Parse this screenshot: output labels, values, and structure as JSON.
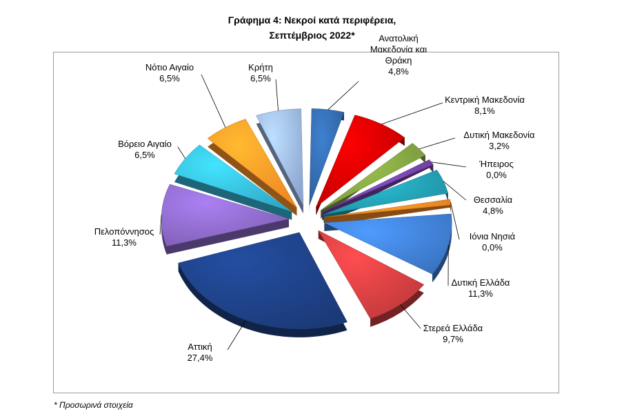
{
  "title_line1": "Γράφημα 4: Νεκροί κατά περιφέρεια,",
  "title_line2": "Σεπτέμβριος 2022*",
  "footnote": "* Προσωρινά στοιχεία",
  "chart_data": {
    "type": "pie",
    "title": "Γράφημα 4: Νεκροί κατά περιφέρεια, Σεπτέμβριος 2022*",
    "slices": [
      {
        "name": "Ανατολική Μακεδονία και Θράκη",
        "label_lines": [
          "Ανατολική",
          "Μακεδονία και",
          "Θράκη"
        ],
        "value_label": "4,8%",
        "value": 4.8,
        "color": "#2e5f9a"
      },
      {
        "name": "Κεντρική Μακεδονία",
        "label_lines": [
          "Κεντρική Μακεδονία"
        ],
        "value_label": "8,1%",
        "value": 8.1,
        "color": "#c00000"
      },
      {
        "name": "Δυτική Μακεδονία",
        "label_lines": [
          "Δυτική Μακεδονία"
        ],
        "value_label": "3,2%",
        "value": 3.2,
        "color": "#76933c"
      },
      {
        "name": "Ήπειρος",
        "label_lines": [
          "Ήπειρος"
        ],
        "value_label": "0,0%",
        "value": 0.0,
        "color": "#6a3d9a"
      },
      {
        "name": "Θεσσαλία",
        "label_lines": [
          "Θεσσαλία"
        ],
        "value_label": "4,8%",
        "value": 4.8,
        "color": "#1f8fa0"
      },
      {
        "name": "Ιόνια Νησιά",
        "label_lines": [
          "Ιόνια Νησιά"
        ],
        "value_label": "0,0%",
        "value": 0.0,
        "color": "#e07b1f"
      },
      {
        "name": "Δυτική Ελλάδα",
        "label_lines": [
          "Δυτική Ελλάδα"
        ],
        "value_label": "11,3%",
        "value": 11.3,
        "color": "#3a73c0"
      },
      {
        "name": "Στερεά Ελλάδα",
        "label_lines": [
          "Στερεά Ελλάδα"
        ],
        "value_label": "9,7%",
        "value": 9.7,
        "color": "#c0393b"
      },
      {
        "name": "Αττική",
        "label_lines": [
          "Αττική"
        ],
        "value_label": "27,4%",
        "value": 27.4,
        "color": "#1b3a78"
      },
      {
        "name": "Πελοπόννησος",
        "label_lines": [
          "Πελοπόννησος"
        ],
        "value_label": "11,3%",
        "value": 11.3,
        "color": "#7f5fb4"
      },
      {
        "name": "Βόρειο Αιγαίο",
        "label_lines": [
          "Βόρειο Αιγαίο"
        ],
        "value_label": "6,5%",
        "value": 6.5,
        "color": "#31a9c8"
      },
      {
        "name": "Νότιο Αιγαίο",
        "label_lines": [
          "Νότιο Αιγαίο"
        ],
        "value_label": "6,5%",
        "value": 6.5,
        "color": "#f08a24"
      },
      {
        "name": "Κρήτη",
        "label_lines": [
          "Κρήτη"
        ],
        "value_label": "6,5%",
        "value": 6.5,
        "color": "#8da6d0"
      }
    ]
  }
}
